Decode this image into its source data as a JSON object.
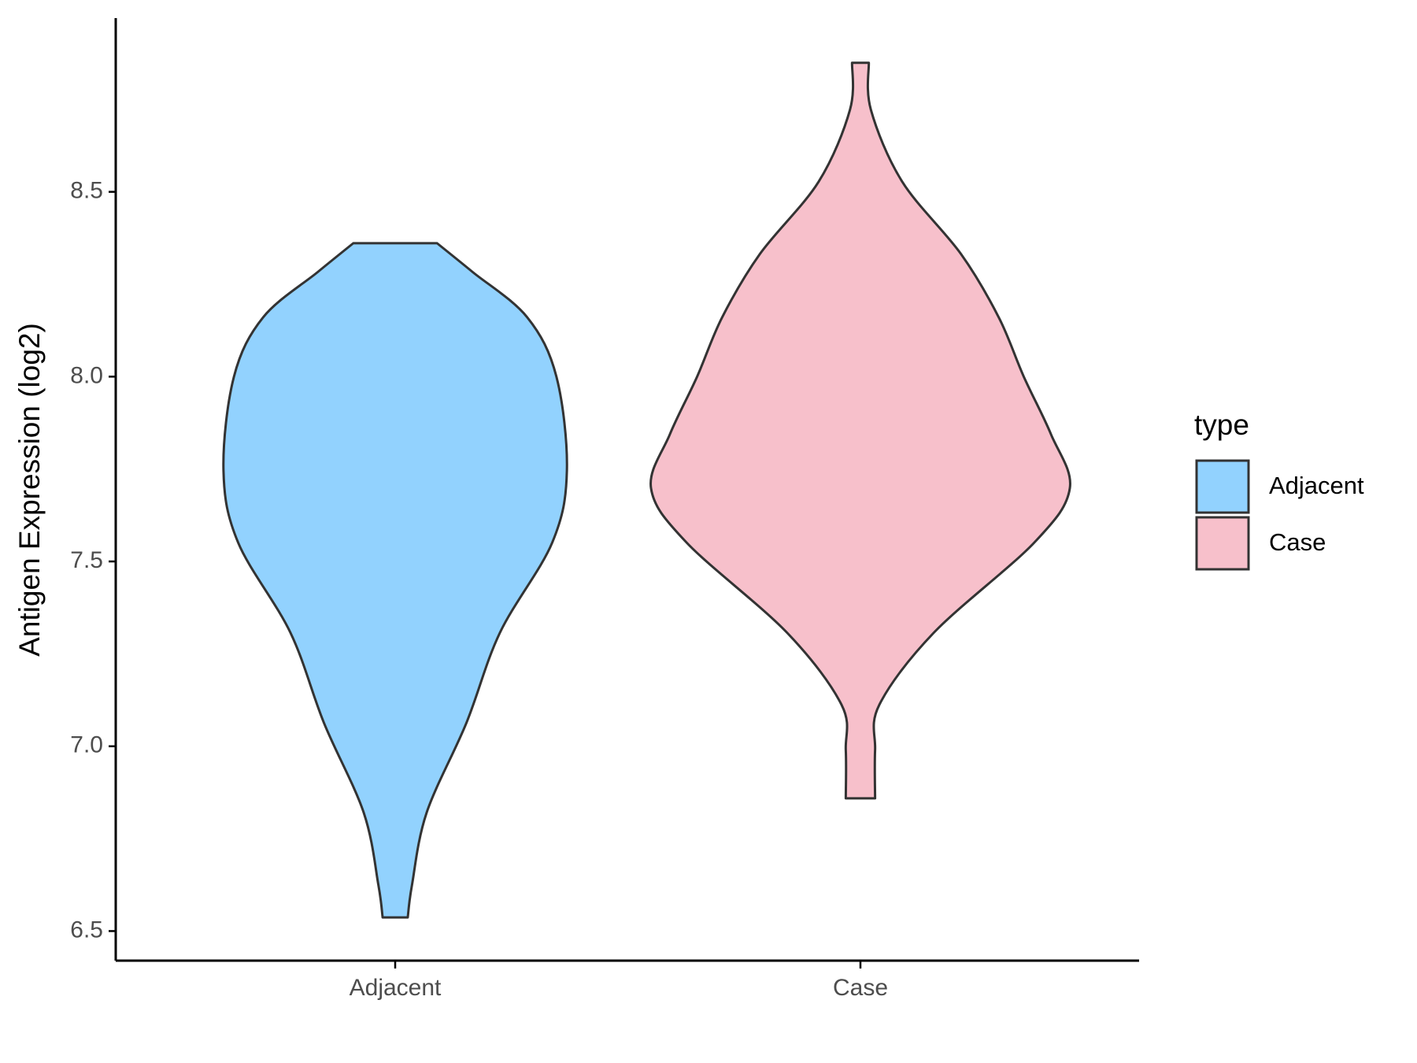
{
  "chart_data": {
    "type": "violin",
    "y_label": "Antigen Expression (log2)",
    "categories": [
      "Adjacent",
      "Case"
    ],
    "legend_title": "type",
    "legend": "right",
    "ylim": [
      6.42,
      8.97
    ],
    "yticks": [
      6.5,
      {
        "value": 7,
        "label": "7.0"
      },
      7.5,
      {
        "value": 8,
        "label": "8.0"
      },
      8.5
    ],
    "series": [
      {
        "name": "Adjacent",
        "color": "#92d2fe",
        "density_y": [
          6.537,
          6.624,
          6.82,
          7.063,
          7.307,
          7.551,
          7.746,
          8.0,
          8.161,
          8.283,
          8.361
        ],
        "density": [
          0.06,
          0.08,
          0.15,
          0.34,
          0.5,
          0.75,
          0.82,
          0.77,
          0.63,
          0.37,
          0.2
        ]
      },
      {
        "name": "Case",
        "color": "#f7c0cb",
        "density_y": [
          6.859,
          6.99,
          7.112,
          7.307,
          7.551,
          7.698,
          7.844,
          8.0,
          8.161,
          8.332,
          8.527,
          8.722,
          8.849
        ],
        "density": [
          0.07,
          0.07,
          0.09,
          0.35,
          0.83,
          1.0,
          0.91,
          0.78,
          0.66,
          0.48,
          0.2,
          0.05,
          0.04
        ]
      }
    ]
  }
}
